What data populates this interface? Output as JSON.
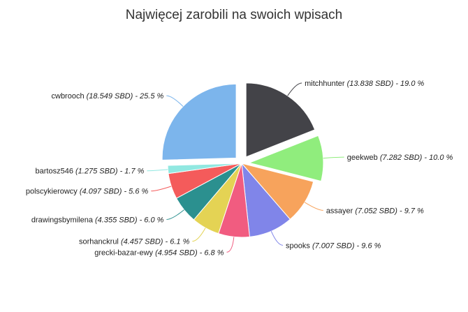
{
  "chart_data": {
    "type": "pie",
    "title": "Najwięcej zarobili na swoich wpisach",
    "slices": [
      {
        "name": "mitchhunter",
        "label": "(13.838 SBD) - 19.0 %",
        "amount": 13.838,
        "percent": 19.0,
        "color": "#434348",
        "exploded": true
      },
      {
        "name": "geekweb",
        "label": "(7.282 SBD) - 10.0 %",
        "amount": 7.282,
        "percent": 10.0,
        "color": "#90ed7d",
        "exploded": true
      },
      {
        "name": "assayer",
        "label": "(7.052 SBD) - 9.7 %",
        "amount": 7.052,
        "percent": 9.7,
        "color": "#f7a35c",
        "exploded": false
      },
      {
        "name": "spooks",
        "label": "(7.007 SBD) - 9.6 %",
        "amount": 7.007,
        "percent": 9.6,
        "color": "#8085e9",
        "exploded": false
      },
      {
        "name": "grecki-bazar-ewy",
        "label": "(4.954 SBD) - 6.8 %",
        "amount": 4.954,
        "percent": 6.8,
        "color": "#f15c80",
        "exploded": false
      },
      {
        "name": "sorhanckrul",
        "label": "(4.457 SBD) - 6.1 %",
        "amount": 4.457,
        "percent": 6.1,
        "color": "#e4d354",
        "exploded": false
      },
      {
        "name": "drawingsbymilena",
        "label": "(4.355 SBD) - 6.0 %",
        "amount": 4.355,
        "percent": 6.0,
        "color": "#2b908f",
        "exploded": false
      },
      {
        "name": "polscykierowcy",
        "label": "(4.097 SBD) - 5.6 %",
        "amount": 4.097,
        "percent": 5.6,
        "color": "#f45b5b",
        "exploded": false
      },
      {
        "name": "bartosz546",
        "label": "(1.275 SBD) - 1.7 %",
        "amount": 1.275,
        "percent": 1.7,
        "color": "#91e8e1",
        "exploded": false
      },
      {
        "name": "cwbrooch",
        "label": "(18.549 SBD) - 25.5 %",
        "amount": 18.549,
        "percent": 25.5,
        "color": "#7cb5ec",
        "exploded": true
      }
    ]
  }
}
